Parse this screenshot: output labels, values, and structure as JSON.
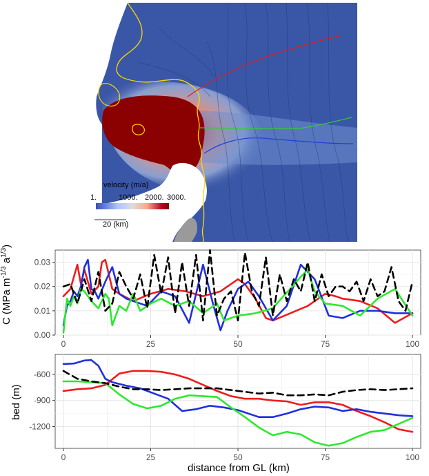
{
  "map": {
    "colorbar_title": "velocity (m/a)",
    "colorbar_ticks": [
      "1.",
      "1000.",
      "2000.",
      "3000."
    ],
    "scale_bar_label": "20 (km)",
    "colormap": [
      "#3b4cc0",
      "#aac7fd",
      "#dddddd",
      "#f7a889",
      "#b40426",
      "#8b0000"
    ],
    "background_color": "#3a57a7",
    "profile_colors": [
      "#e41a1c",
      "#33cc33",
      "#1f3fd6"
    ],
    "grounding_line_color": "#ffd700"
  },
  "chart_data": [
    {
      "type": "line",
      "xlabel": "",
      "ylabel": "C (MPa m^-1/3 a^1/3)",
      "xlim": [
        0,
        100
      ],
      "ylim": [
        0,
        0.035
      ],
      "x_ticks": [
        "0",
        "25",
        "50",
        "75",
        "100"
      ],
      "y_ticks": [
        "0.00",
        "0.01",
        "0.02",
        "0.03"
      ],
      "grid": true,
      "series": [
        {
          "color": "#ee1c1c",
          "dash": "solid",
          "x": [
            0,
            2,
            4,
            5,
            6,
            7,
            8,
            10,
            11,
            12,
            13,
            14,
            16,
            20,
            25,
            30,
            35,
            40,
            45,
            50,
            52,
            55,
            58,
            60,
            65,
            70,
            75,
            78,
            80,
            85,
            90,
            95,
            100
          ],
          "y": [
            0.016,
            0.019,
            0.029,
            0.021,
            0.027,
            0.022,
            0.017,
            0.02,
            0.03,
            0.031,
            0.025,
            0.019,
            0.017,
            0.014,
            0.017,
            0.019,
            0.018,
            0.016,
            0.018,
            0.023,
            0.021,
            0.015,
            0.007,
            0.006,
            0.009,
            0.012,
            0.017,
            0.016,
            0.015,
            0.014,
            0.011,
            0.005,
            0.009
          ]
        },
        {
          "color": "#1f2fe0",
          "dash": "solid",
          "x": [
            0,
            1,
            2,
            3,
            4,
            5,
            6,
            7,
            8,
            9,
            10,
            12,
            14,
            16,
            18,
            20,
            24,
            28,
            32,
            36,
            40,
            43,
            45,
            47,
            50,
            53,
            56,
            60,
            64,
            68,
            72,
            76,
            80,
            85,
            90,
            95,
            100
          ],
          "y": [
            0.004,
            0.012,
            0.014,
            0.018,
            0.016,
            0.02,
            0.028,
            0.031,
            0.019,
            0.018,
            0.015,
            0.022,
            0.028,
            0.017,
            0.015,
            0.014,
            0.012,
            0.018,
            0.016,
            0.005,
            0.029,
            0.012,
            0.002,
            0.01,
            0.019,
            0.022,
            0.016,
            0.006,
            0.012,
            0.029,
            0.023,
            0.008,
            0.007,
            0.01,
            0.01,
            0.009,
            0.009
          ]
        },
        {
          "color": "#2ee82e",
          "dash": "solid",
          "x": [
            0,
            1,
            2,
            3,
            4,
            5,
            6,
            8,
            10,
            12,
            13,
            14,
            16,
            18,
            20,
            22,
            25,
            28,
            32,
            36,
            40,
            44,
            46,
            50,
            55,
            60,
            63,
            65,
            68,
            70,
            72,
            75,
            80,
            85,
            90,
            95,
            100
          ],
          "y": [
            0.001,
            0.015,
            0.012,
            0.016,
            0.013,
            0.019,
            0.018,
            0.014,
            0.011,
            0.017,
            0.015,
            0.004,
            0.012,
            0.01,
            0.017,
            0.01,
            0.013,
            0.015,
            0.012,
            0.014,
            0.009,
            0.013,
            0.006,
            0.008,
            0.009,
            0.011,
            0.016,
            0.019,
            0.024,
            0.027,
            0.018,
            0.013,
            0.012,
            0.008,
            0.015,
            0.019,
            0.008
          ]
        },
        {
          "color": "#000000",
          "dash": "dashed",
          "x": [
            0,
            2,
            4,
            6,
            8,
            10,
            12,
            14,
            16,
            18,
            20,
            22,
            24,
            26,
            28,
            30,
            32,
            34,
            36,
            38,
            40,
            42,
            44,
            46,
            48,
            50,
            52,
            54,
            56,
            58,
            60,
            62,
            64,
            66,
            68,
            70,
            72,
            74,
            76,
            78,
            80,
            82,
            84,
            86,
            88,
            90,
            92,
            94,
            96,
            98,
            100
          ],
          "y": [
            0.02,
            0.021,
            0.013,
            0.023,
            0.014,
            0.026,
            0.01,
            0.013,
            0.026,
            0.02,
            0.015,
            0.025,
            0.011,
            0.033,
            0.017,
            0.032,
            0.009,
            0.03,
            0.012,
            0.033,
            0.006,
            0.035,
            0.008,
            0.015,
            0.018,
            0.006,
            0.034,
            0.018,
            0.012,
            0.032,
            0.008,
            0.025,
            0.014,
            0.023,
            0.018,
            0.03,
            0.014,
            0.025,
            0.016,
            0.02,
            0.02,
            0.018,
            0.022,
            0.014,
            0.023,
            0.016,
            0.018,
            0.028,
            0.014,
            0.01,
            0.022
          ]
        }
      ]
    },
    {
      "type": "line",
      "xlabel": "distance from GL (km)",
      "ylabel": "bed (m)",
      "xlim": [
        0,
        100
      ],
      "ylim": [
        -1450,
        -370
      ],
      "x_ticks": [
        "0",
        "25",
        "50",
        "75",
        "100"
      ],
      "y_ticks": [
        "-600",
        "-900",
        "-1200"
      ],
      "grid": true,
      "series": [
        {
          "color": "#ee1c1c",
          "dash": "solid",
          "x": [
            0,
            4,
            8,
            12,
            16,
            20,
            24,
            28,
            32,
            36,
            40,
            44,
            48,
            52,
            56,
            60,
            64,
            68,
            72,
            76,
            80,
            84,
            88,
            92,
            96,
            100
          ],
          "y": [
            -790,
            -770,
            -760,
            -720,
            -590,
            -560,
            -560,
            -570,
            -600,
            -650,
            -720,
            -790,
            -850,
            -880,
            -880,
            -900,
            -910,
            -950,
            -920,
            -920,
            -950,
            -1020,
            -1080,
            -1150,
            -1230,
            -1260
          ]
        },
        {
          "color": "#1f2fe0",
          "dash": "solid",
          "x": [
            0,
            3,
            6,
            8,
            10,
            12,
            14,
            18,
            22,
            26,
            30,
            34,
            38,
            42,
            46,
            50,
            56,
            60,
            64,
            68,
            72,
            76,
            80,
            84,
            88,
            92,
            96,
            100
          ],
          "y": [
            -480,
            -475,
            -440,
            -435,
            -500,
            -650,
            -690,
            -730,
            -760,
            -820,
            -880,
            -1020,
            -1000,
            -960,
            -980,
            -1010,
            -1090,
            -1090,
            -1050,
            -1000,
            -970,
            -980,
            -1020,
            -1000,
            -1030,
            -1050,
            -1070,
            -1080
          ]
        },
        {
          "color": "#2ee82e",
          "dash": "solid",
          "x": [
            0,
            4,
            8,
            12,
            16,
            20,
            24,
            28,
            32,
            36,
            40,
            44,
            48,
            52,
            56,
            60,
            64,
            68,
            72,
            76,
            80,
            84,
            88,
            92,
            96,
            100
          ],
          "y": [
            -680,
            -680,
            -690,
            -700,
            -830,
            -940,
            -990,
            -960,
            -880,
            -840,
            -850,
            -860,
            -980,
            -1090,
            -1210,
            -1300,
            -1260,
            -1290,
            -1380,
            -1420,
            -1390,
            -1320,
            -1260,
            -1240,
            -1170,
            -1100
          ]
        },
        {
          "color": "#000000",
          "dash": "dashed",
          "x": [
            0,
            4,
            8,
            12,
            16,
            20,
            24,
            28,
            32,
            36,
            40,
            44,
            48,
            52,
            56,
            60,
            64,
            68,
            72,
            76,
            80,
            84,
            88,
            92,
            96,
            100
          ],
          "y": [
            -560,
            -650,
            -680,
            -700,
            -740,
            -770,
            -770,
            -780,
            -770,
            -760,
            -760,
            -760,
            -780,
            -800,
            -820,
            -810,
            -840,
            -840,
            -830,
            -840,
            -800,
            -780,
            -770,
            -780,
            -770,
            -760
          ]
        }
      ]
    }
  ]
}
